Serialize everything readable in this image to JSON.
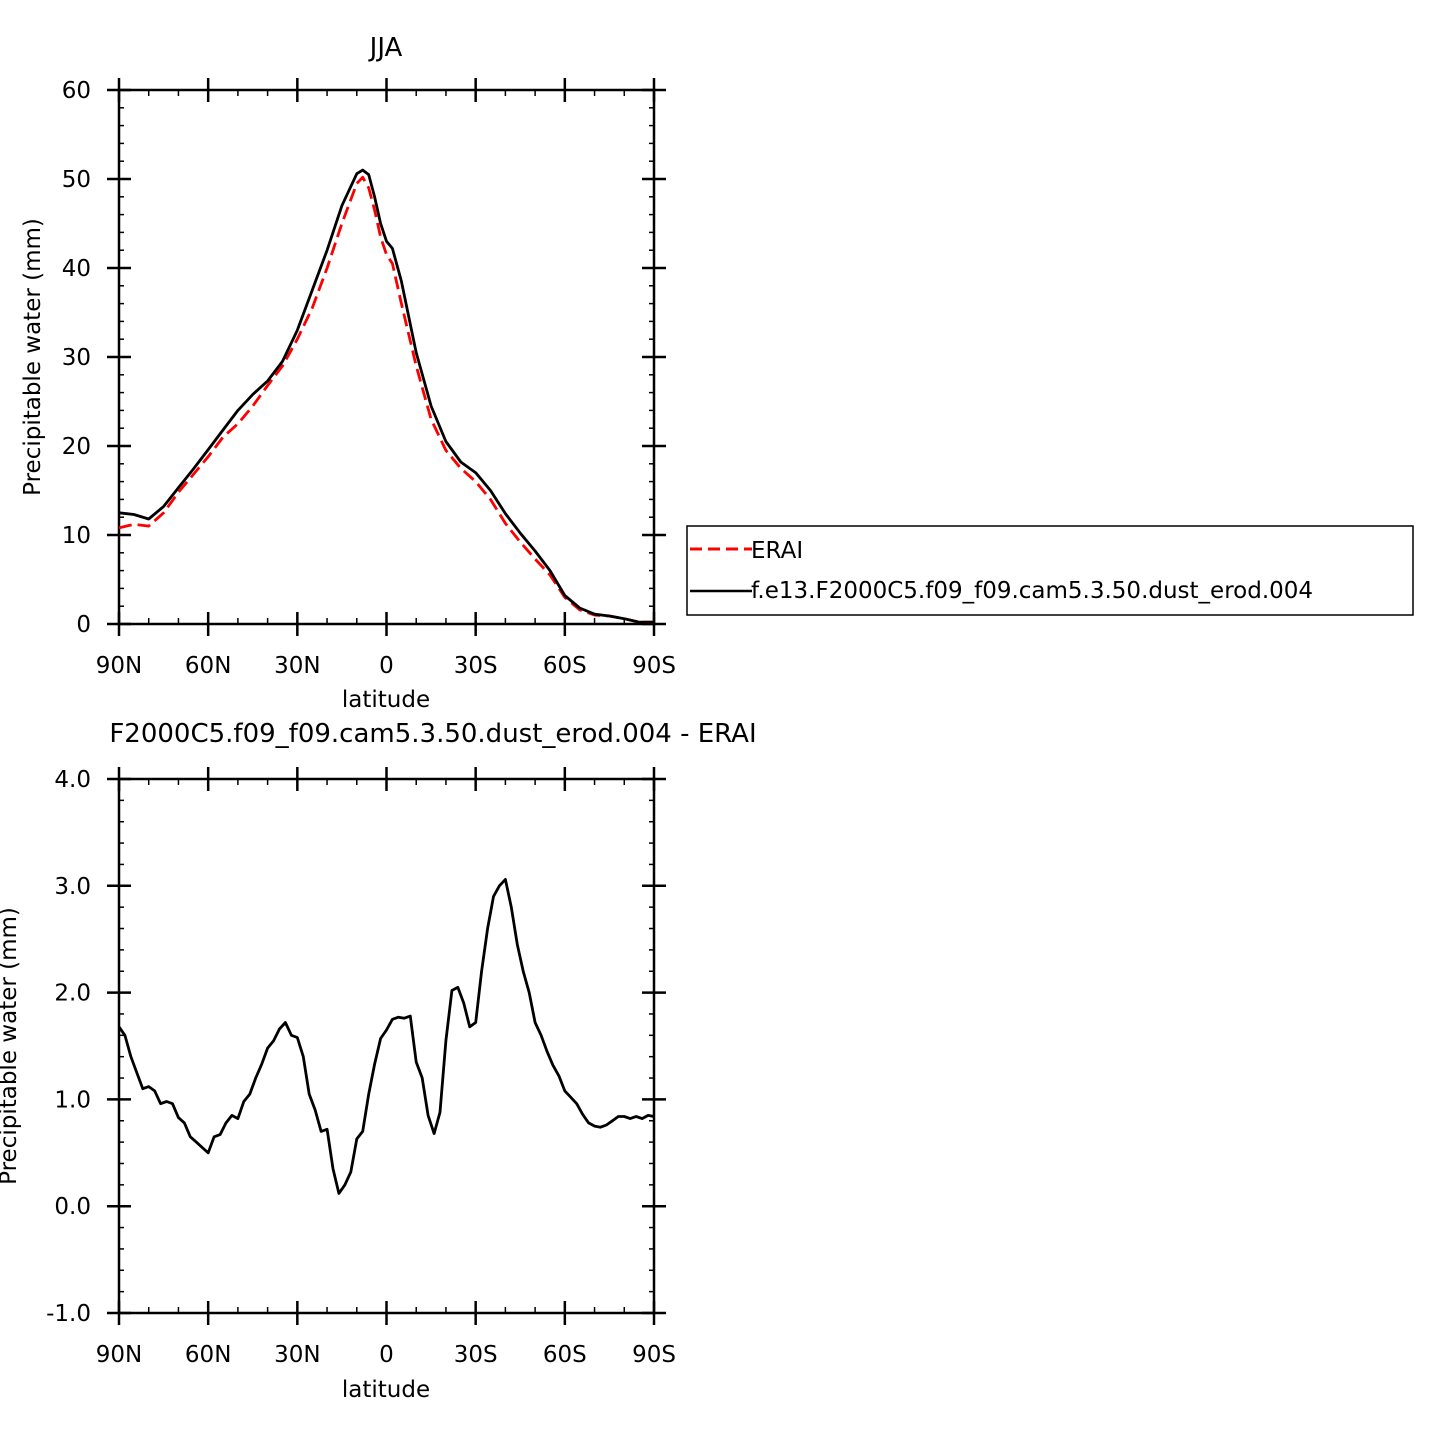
{
  "chart_data": [
    {
      "type": "line",
      "title": "JJA",
      "xlabel": "latitude",
      "ylabel": "Precipitable water (mm)",
      "xlim": [
        90,
        -90
      ],
      "ylim": [
        0,
        60
      ],
      "x_tick_values": [
        90,
        60,
        30,
        0,
        -30,
        -60,
        -90
      ],
      "x_tick_labels": [
        "90N",
        "60N",
        "30N",
        "0",
        "30S",
        "60S",
        "90S"
      ],
      "y_tick_values": [
        0,
        10,
        20,
        30,
        40,
        50,
        60
      ],
      "y_tick_labels": [
        "0",
        "10",
        "20",
        "30",
        "40",
        "50",
        "60"
      ],
      "grid": false,
      "legend_placement": "right",
      "x": [
        90,
        85,
        80,
        75,
        70,
        65,
        60,
        55,
        50,
        45,
        40,
        35,
        30,
        25,
        20,
        15,
        10,
        8,
        6,
        4,
        2,
        0,
        -2,
        -5,
        -10,
        -15,
        -20,
        -25,
        -30,
        -35,
        -40,
        -45,
        -50,
        -55,
        -60,
        -65,
        -70,
        -75,
        -80,
        -85,
        -90
      ],
      "series": [
        {
          "name": "ERAI",
          "color": "#ff0000",
          "dash": "dashed",
          "values": [
            10.8,
            11.2,
            11.0,
            12.5,
            14.8,
            16.8,
            18.8,
            21.0,
            22.5,
            24.5,
            26.8,
            29.0,
            32.0,
            35.5,
            40.0,
            45.0,
            49.5,
            50.2,
            49.0,
            46.5,
            43.5,
            41.5,
            40.5,
            36.0,
            29.0,
            23.0,
            19.5,
            17.5,
            16.0,
            14.0,
            11.3,
            9.2,
            7.3,
            5.5,
            3.0,
            1.6,
            1.0,
            0.9,
            0.6,
            0.2,
            0.2
          ]
        },
        {
          "name": "f.e13.F2000C5.f09_f09.cam5.3.50.dust_erod.004",
          "color": "#000000",
          "dash": "solid",
          "values": [
            12.5,
            12.3,
            11.8,
            13.2,
            15.3,
            17.4,
            19.6,
            21.8,
            24.0,
            25.8,
            27.3,
            29.5,
            33.0,
            37.5,
            42.0,
            47.0,
            50.6,
            51.0,
            50.5,
            48.0,
            45.0,
            43.0,
            42.2,
            38.5,
            30.5,
            24.5,
            20.5,
            18.2,
            17.0,
            15.0,
            12.4,
            10.2,
            8.2,
            6.0,
            3.2,
            1.8,
            1.1,
            0.9,
            0.6,
            0.2,
            0.2
          ]
        }
      ]
    },
    {
      "type": "line",
      "title": "F2000C5.f09_f09.cam5.3.50.dust_erod.004 - ERAI",
      "xlabel": "latitude",
      "ylabel": "Precipitable water (mm)",
      "xlim": [
        90,
        -90
      ],
      "ylim": [
        -1.0,
        4.0
      ],
      "x_tick_values": [
        90,
        60,
        30,
        0,
        -30,
        -60,
        -90
      ],
      "x_tick_labels": [
        "90N",
        "60N",
        "30N",
        "0",
        "30S",
        "60S",
        "90S"
      ],
      "y_tick_values": [
        -1.0,
        0.0,
        1.0,
        2.0,
        3.0,
        4.0
      ],
      "y_tick_labels": [
        "-1.0",
        "0.0",
        "1.0",
        "2.0",
        "3.0",
        "4.0"
      ],
      "grid": false,
      "x": [
        90,
        88,
        86,
        84,
        82,
        80,
        78,
        76,
        74,
        72,
        70,
        68,
        66,
        64,
        62,
        60,
        58,
        56,
        54,
        52,
        50,
        48,
        46,
        44,
        42,
        40,
        38,
        36,
        34,
        32,
        30,
        28,
        26,
        24,
        22,
        20,
        18,
        16,
        14,
        12,
        10,
        8,
        6,
        4,
        2,
        0,
        -2,
        -4,
        -6,
        -8,
        -10,
        -12,
        -14,
        -16,
        -18,
        -20,
        -22,
        -24,
        -26,
        -28,
        -30,
        -32,
        -34,
        -36,
        -38,
        -40,
        -42,
        -44,
        -46,
        -48,
        -50,
        -52,
        -54,
        -56,
        -58,
        -60,
        -62,
        -64,
        -66,
        -68,
        -70,
        -72,
        -74,
        -76,
        -78,
        -80,
        -82,
        -84,
        -86,
        -88,
        -90
      ],
      "series": [
        {
          "name": "",
          "color": "#000000",
          "values": [
            1.68,
            1.6,
            1.4,
            1.25,
            1.1,
            1.12,
            1.08,
            0.96,
            0.98,
            0.96,
            0.83,
            0.78,
            0.65,
            0.6,
            0.55,
            0.5,
            0.65,
            0.67,
            0.78,
            0.85,
            0.82,
            0.98,
            1.05,
            1.2,
            1.33,
            1.48,
            1.55,
            1.66,
            1.72,
            1.6,
            1.58,
            1.4,
            1.05,
            0.9,
            0.7,
            0.72,
            0.35,
            0.12,
            0.2,
            0.32,
            0.63,
            0.7,
            1.05,
            1.33,
            1.57,
            1.65,
            1.75,
            1.77,
            1.76,
            1.78,
            1.35,
            1.2,
            0.85,
            0.68,
            0.88,
            1.55,
            2.02,
            2.05,
            1.9,
            1.68,
            1.72,
            2.2,
            2.6,
            2.9,
            3.0,
            3.06,
            2.8,
            2.45,
            2.2,
            2.0,
            1.72,
            1.6,
            1.45,
            1.32,
            1.22,
            1.08,
            1.02,
            0.96,
            0.86,
            0.78,
            0.75,
            0.74,
            0.76,
            0.8,
            0.84,
            0.84,
            0.82,
            0.84,
            0.82,
            0.85,
            0.84
          ]
        }
      ]
    }
  ]
}
